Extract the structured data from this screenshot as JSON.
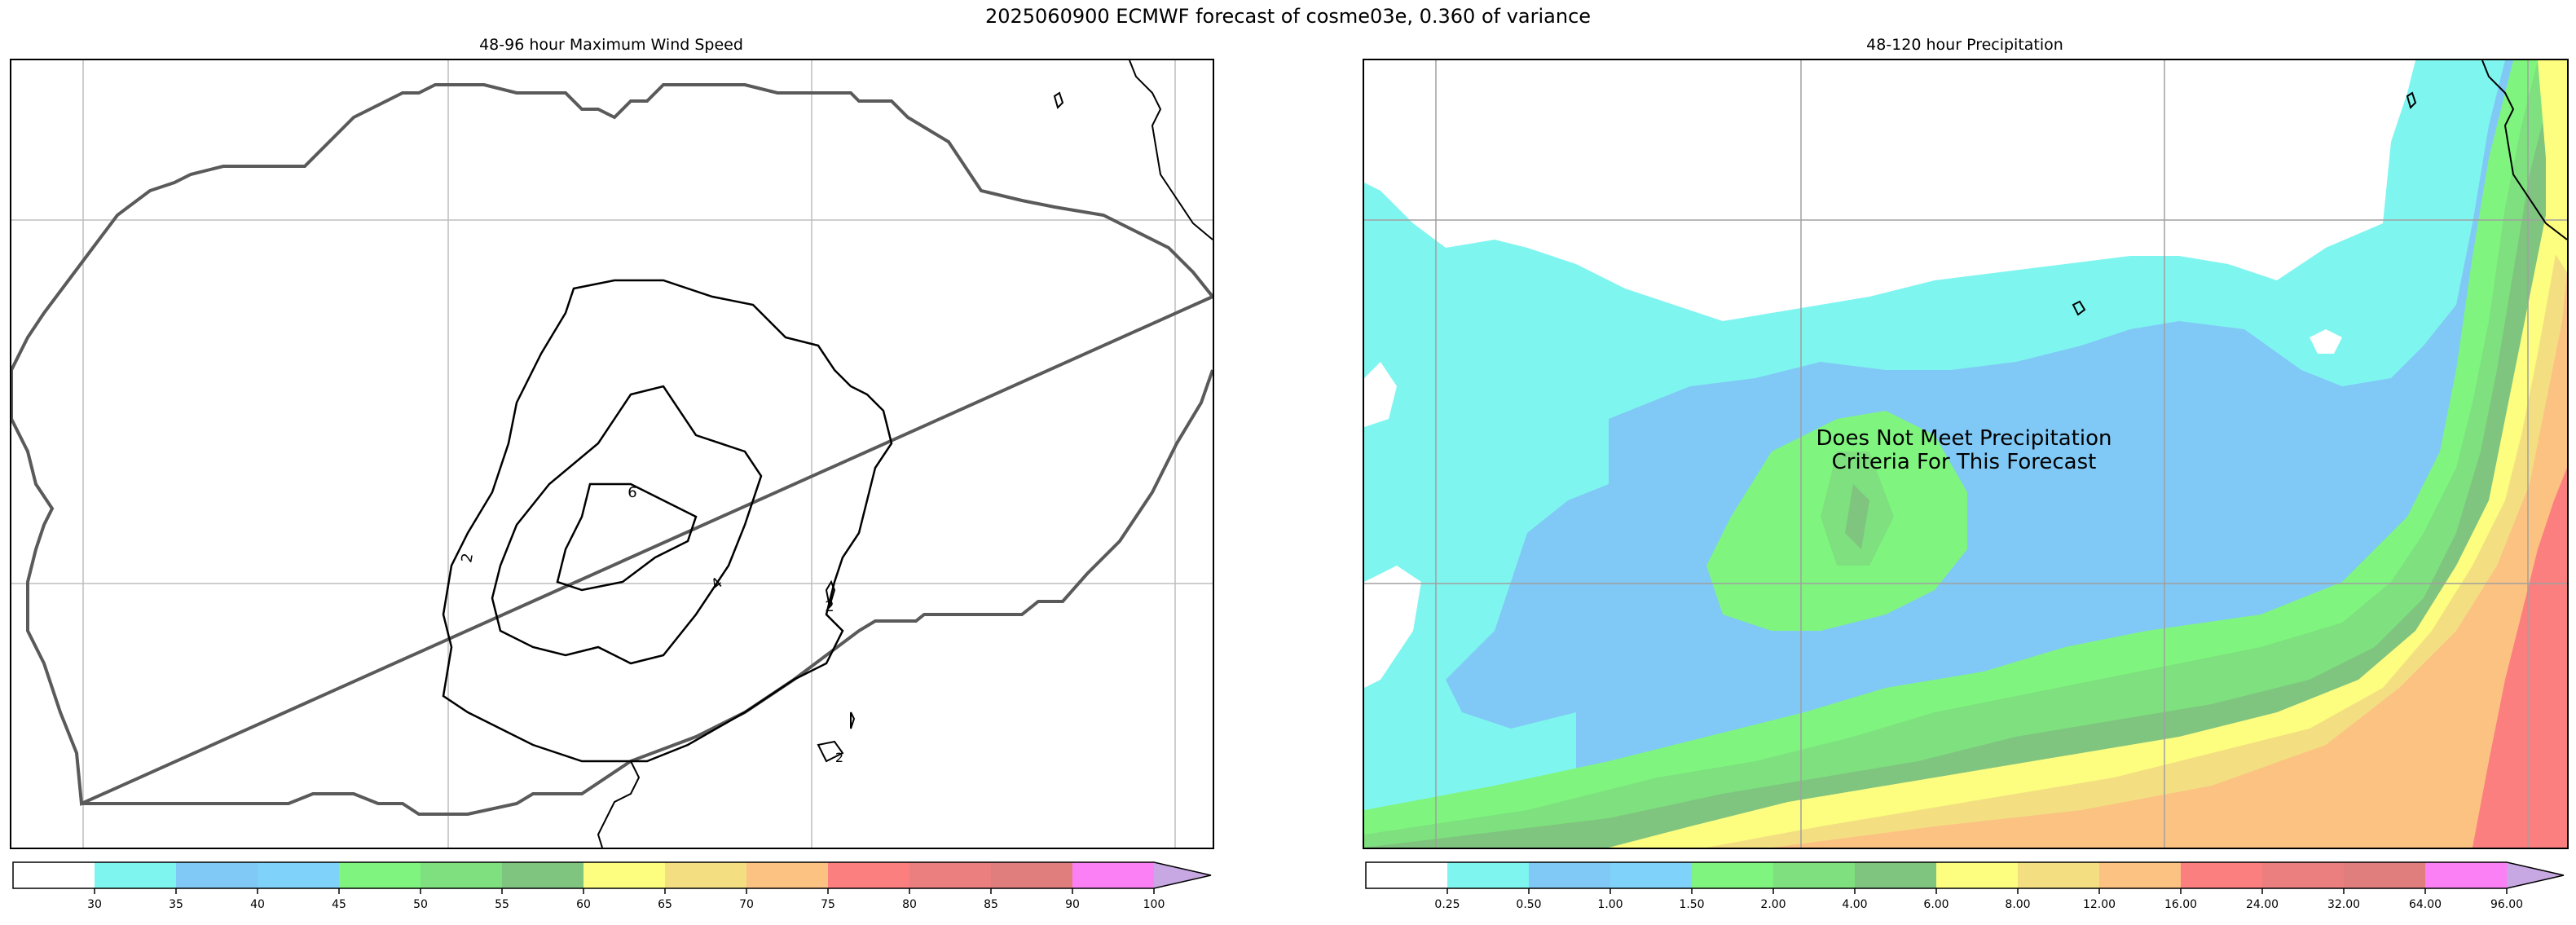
{
  "figure": {
    "suptitle": "2025060900 ECMWF forecast of cosme03e, 0.360 of variance"
  },
  "left_panel": {
    "title": "48-96 hour Maximum Wind Speed",
    "contour_labels": [
      "2",
      "4",
      "6",
      "2",
      "2"
    ],
    "colorbar": {
      "colors": [
        "#ffffff",
        "#7ff5f0",
        "#80c8f5",
        "#7fd2fa",
        "#7ff57f",
        "#7ee07e",
        "#7fc47f",
        "#fdfd7f",
        "#f3df82",
        "#fcc282",
        "#fb7f7f",
        "#eb7e7e",
        "#e07e7e",
        "#fb7ff5",
        "#c8a8e3"
      ],
      "ticks": [
        "30",
        "35",
        "40",
        "45",
        "50",
        "55",
        "60",
        "65",
        "70",
        "75",
        "80",
        "85",
        "90",
        "100"
      ]
    }
  },
  "right_panel": {
    "title": "48-120 hour Precipitation",
    "notice": "Does Not Meet Precipitation Criteria For This Forecast",
    "colorbar": {
      "colors": [
        "#ffffff",
        "#7ff5f0",
        "#80c8f5",
        "#7fd2fa",
        "#7ff57f",
        "#7ee07e",
        "#7fc47f",
        "#fdfd7f",
        "#f3df82",
        "#fcc282",
        "#fb7f7f",
        "#eb7e7e",
        "#e07e7e",
        "#fb7ff5",
        "#c8a8e3"
      ],
      "ticks": [
        "0.25",
        "0.50",
        "1.00",
        "1.50",
        "2.00",
        "4.00",
        "6.00",
        "8.00",
        "12.00",
        "16.00",
        "24.00",
        "32.00",
        "64.00",
        "96.00"
      ]
    }
  }
}
